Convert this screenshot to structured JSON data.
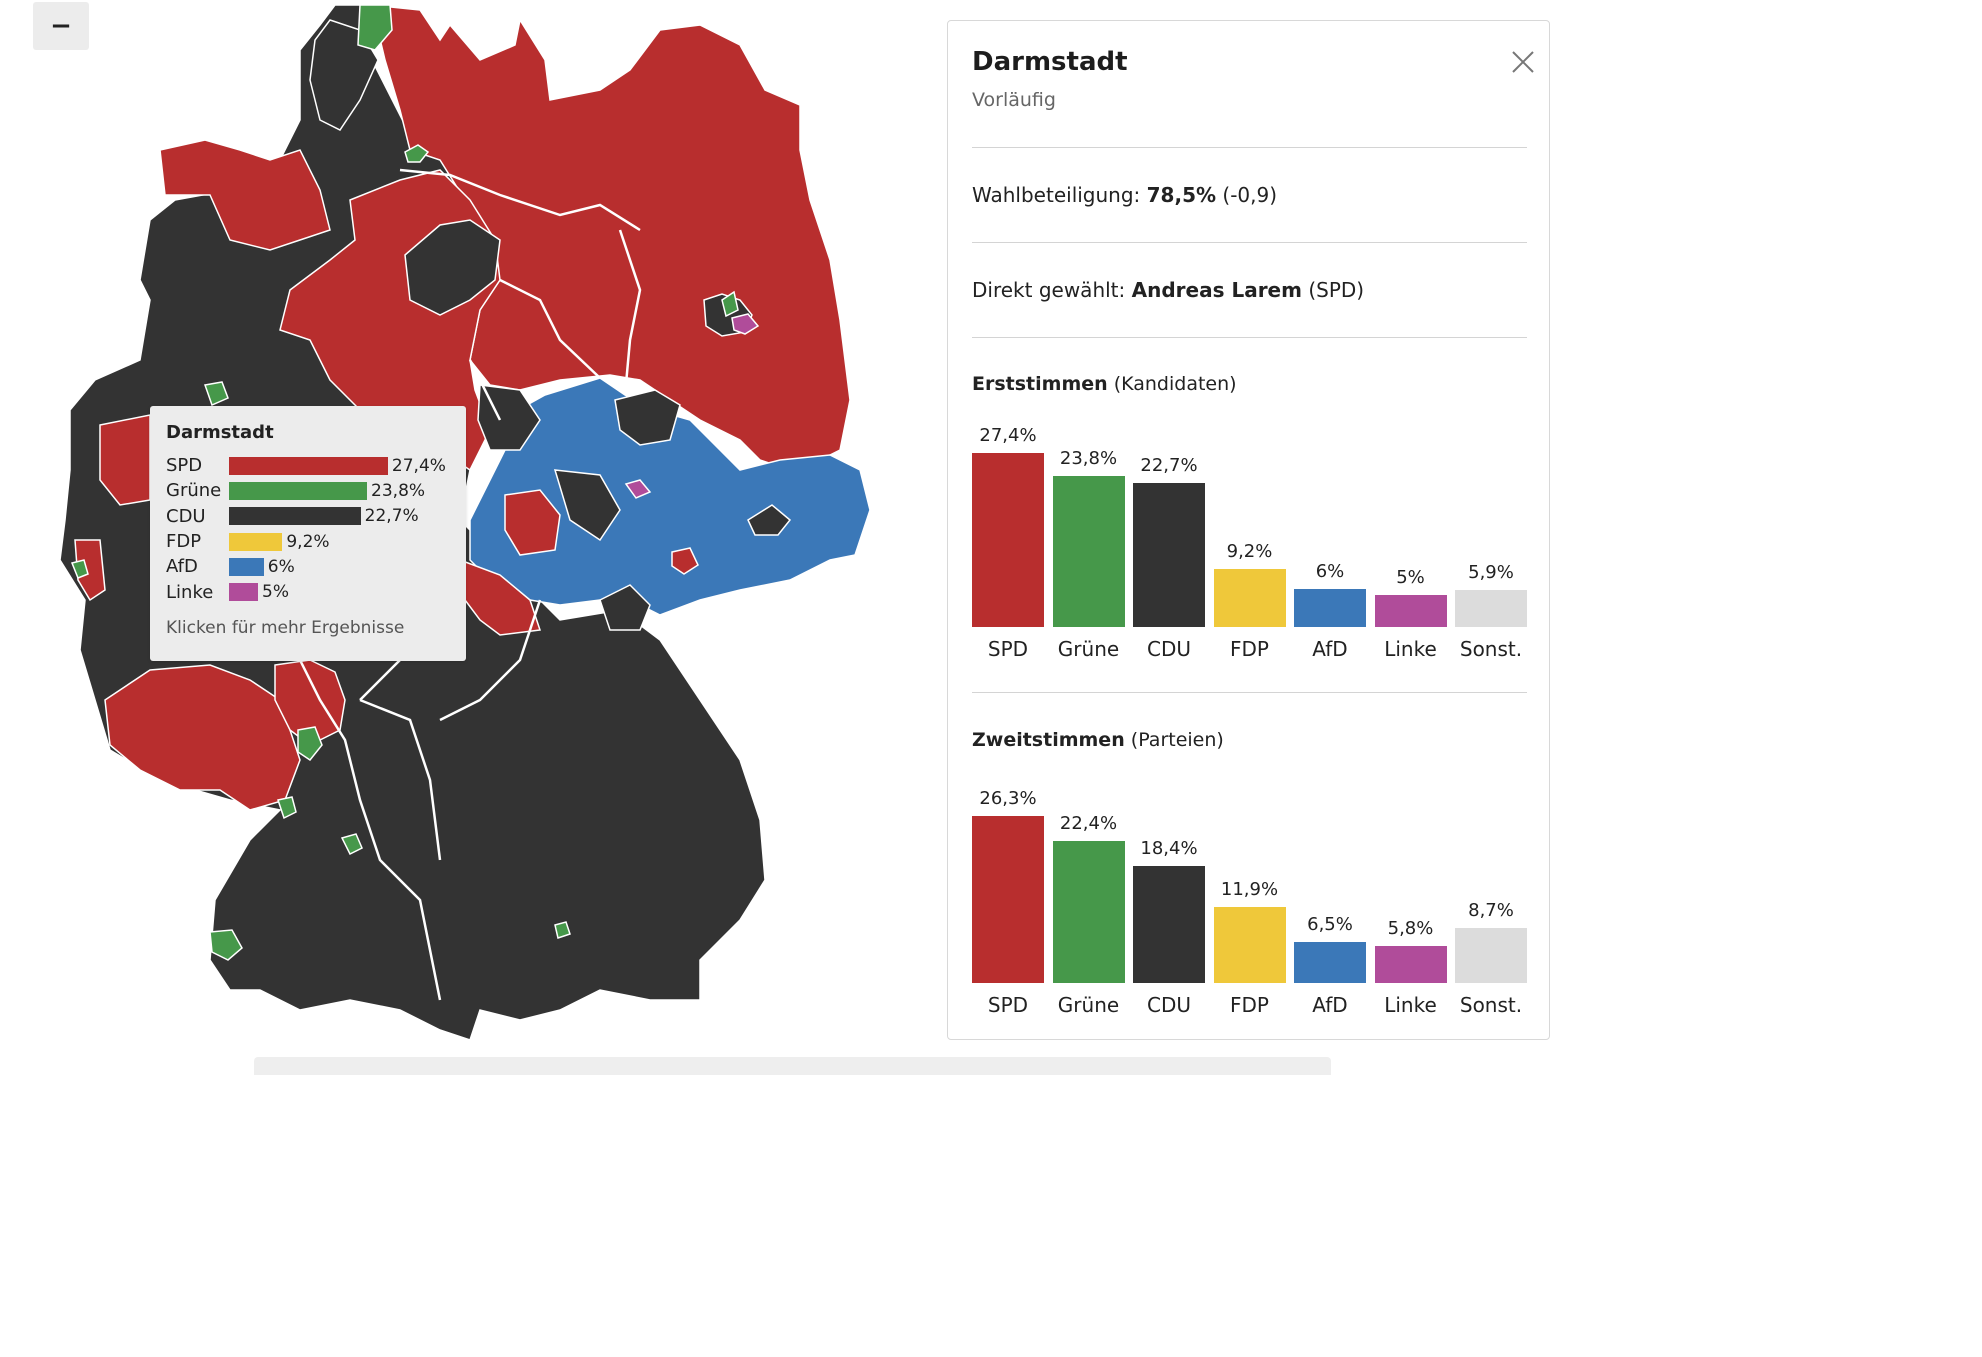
{
  "map": {
    "zoom_out_label": "−",
    "colors": {
      "spd": "#b82e2e",
      "cdu": "#333333",
      "gruene": "#46984a",
      "afd": "#3b78b8",
      "linke": "#b04c9a",
      "border": "#ffffff"
    }
  },
  "tooltip": {
    "title": "Darmstadt",
    "rows": [
      {
        "party": "SPD",
        "value": 27.4,
        "label": "27,4%",
        "color": "#b82e2e"
      },
      {
        "party": "Grüne",
        "value": 23.8,
        "label": "23,8%",
        "color": "#46984a"
      },
      {
        "party": "CDU",
        "value": 22.7,
        "label": "22,7%",
        "color": "#333333"
      },
      {
        "party": "FDP",
        "value": 9.2,
        "label": "9,2%",
        "color": "#efc83a"
      },
      {
        "party": "AfD",
        "value": 6,
        "label": "6%",
        "color": "#3b78b8"
      },
      {
        "party": "Linke",
        "value": 5,
        "label": "5%",
        "color": "#b04c9a"
      }
    ],
    "hint": "Klicken für mehr Ergebnisse"
  },
  "panel": {
    "title": "Darmstadt",
    "subtitle": "Vorläufig",
    "turnout_label": "Wahlbeteiligung:",
    "turnout_value": "78,5%",
    "turnout_change": "(-0,9)",
    "direct_label": "Direkt gewählt:",
    "direct_name": "Andreas Larem",
    "direct_party": "(SPD)"
  },
  "chart_data": [
    {
      "type": "bar",
      "title": "Erststimmen",
      "subtitle": "(Kandidaten)",
      "categories": [
        "SPD",
        "Grüne",
        "CDU",
        "FDP",
        "AfD",
        "Linke",
        "Sonst."
      ],
      "values": [
        27.4,
        23.8,
        22.7,
        9.2,
        6,
        5,
        5.9
      ],
      "value_labels": [
        "27,4%",
        "23,8%",
        "22,7%",
        "9,2%",
        "6%",
        "5%",
        "5,9%"
      ],
      "colors": [
        "#b82e2e",
        "#46984a",
        "#333333",
        "#efc83a",
        "#3b78b8",
        "#b04c9a",
        "#dcdcdc"
      ]
    },
    {
      "type": "bar",
      "title": "Zweitstimmen",
      "subtitle": "(Parteien)",
      "categories": [
        "SPD",
        "Grüne",
        "CDU",
        "FDP",
        "AfD",
        "Linke",
        "Sonst."
      ],
      "values": [
        26.3,
        22.4,
        18.4,
        11.9,
        6.5,
        5.8,
        8.7
      ],
      "value_labels": [
        "26,3%",
        "22,4%",
        "18,4%",
        "11,9%",
        "6,5%",
        "5,8%",
        "8,7%"
      ],
      "colors": [
        "#b82e2e",
        "#46984a",
        "#333333",
        "#efc83a",
        "#3b78b8",
        "#b04c9a",
        "#dcdcdc"
      ]
    }
  ]
}
